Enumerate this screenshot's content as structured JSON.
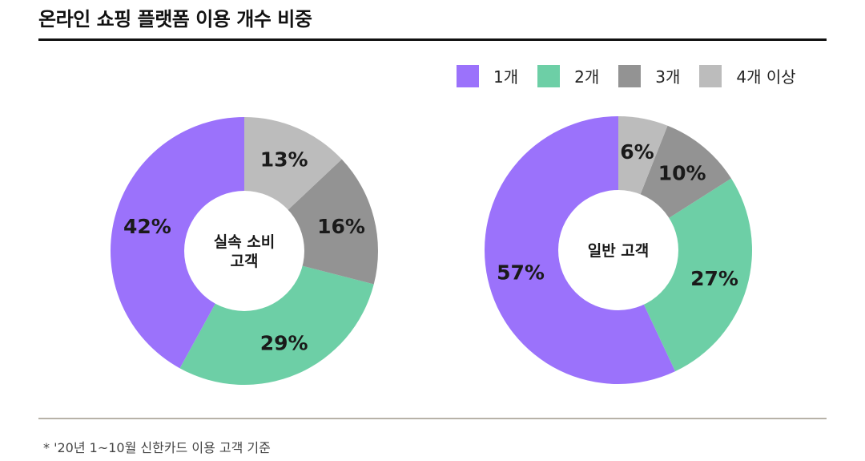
{
  "title": "온라인 쇼핑 플랫폼 이용 개수 비중",
  "legend": [
    {
      "label": "1개",
      "color": "#9b72fb"
    },
    {
      "label": "2개",
      "color": "#6dcfa6"
    },
    {
      "label": "3개",
      "color": "#939393"
    },
    {
      "label": "4개 이상",
      "color": "#bcbcbc"
    }
  ],
  "chart_data": [
    {
      "type": "pie",
      "center_label": [
        "실속 소비",
        "고객"
      ],
      "categories": [
        "1개",
        "2개",
        "3개",
        "4개 이상"
      ],
      "values": [
        42,
        29,
        16,
        13
      ],
      "value_labels": [
        "42%",
        "29%",
        "16%",
        "13%"
      ]
    },
    {
      "type": "pie",
      "center_label": [
        "일반 고객"
      ],
      "categories": [
        "1개",
        "2개",
        "3개",
        "4개 이상"
      ],
      "values": [
        57,
        27,
        10,
        6
      ],
      "value_labels": [
        "57%",
        "27%",
        "10%",
        "6%"
      ]
    }
  ],
  "footnote": "* '20년 1~10월 신한카드 이용 고객 기준"
}
